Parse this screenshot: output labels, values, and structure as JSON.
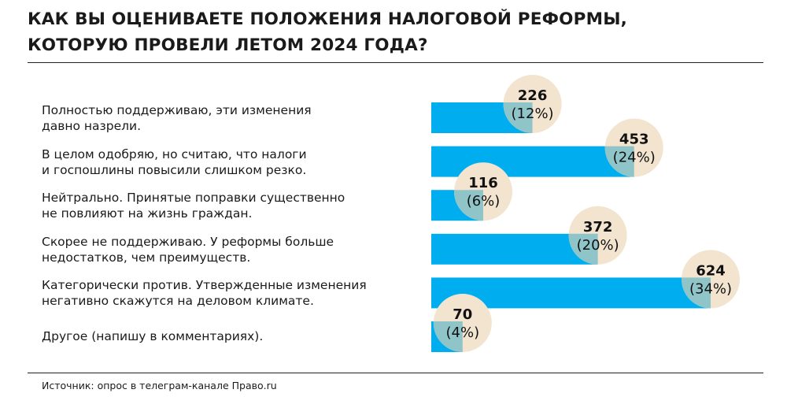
{
  "title_lines": [
    "КАК ВЫ ОЦЕНИВАЕТЕ ПОЛОЖЕНИЯ НАЛОГОВОЙ РЕФОРМЫ,",
    "КОТОРУЮ ПРОВЕЛИ ЛЕТОМ 2024 ГОДА?"
  ],
  "source": "Источник: опрос в телеграм-канале Право.ru",
  "colors": {
    "bar": "#00aeef",
    "bubble": "#f3e4d0",
    "overlap": "#8fc4c8"
  },
  "chart_data": {
    "type": "bar",
    "orientation": "horizontal",
    "title": "КАК ВЫ ОЦЕНИВАЕТЕ ПОЛОЖЕНИЯ НАЛОГОВОЙ РЕФОРМЫ, КОТОРУЮ ПРОВЕЛИ ЛЕТОМ 2024 ГОДА?",
    "categories": [
      [
        "Полностью поддерживаю, эти изменения",
        "давно назрели."
      ],
      [
        "В целом одобряю, но считаю, что налоги",
        "и госпошлины повысили слишком резко."
      ],
      [
        "Нейтрально. Принятые поправки существенно",
        "не повлияют на жизнь граждан."
      ],
      [
        "Скорее не поддерживаю. У реформы больше",
        "недостатков, чем преимуществ."
      ],
      [
        "Категорически против. Утвержденные изменения",
        "негативно скажутся на деловом климате."
      ],
      [
        "Другое (напишу в комментариях)."
      ]
    ],
    "values": [
      226,
      453,
      116,
      372,
      624,
      70
    ],
    "percent_labels": [
      "(12%)",
      "(24%)",
      "(6%)",
      "(20%)",
      "(34%)",
      "(4%)"
    ],
    "value_labels": [
      "226",
      "453",
      "116",
      "372",
      "624",
      "70"
    ]
  }
}
